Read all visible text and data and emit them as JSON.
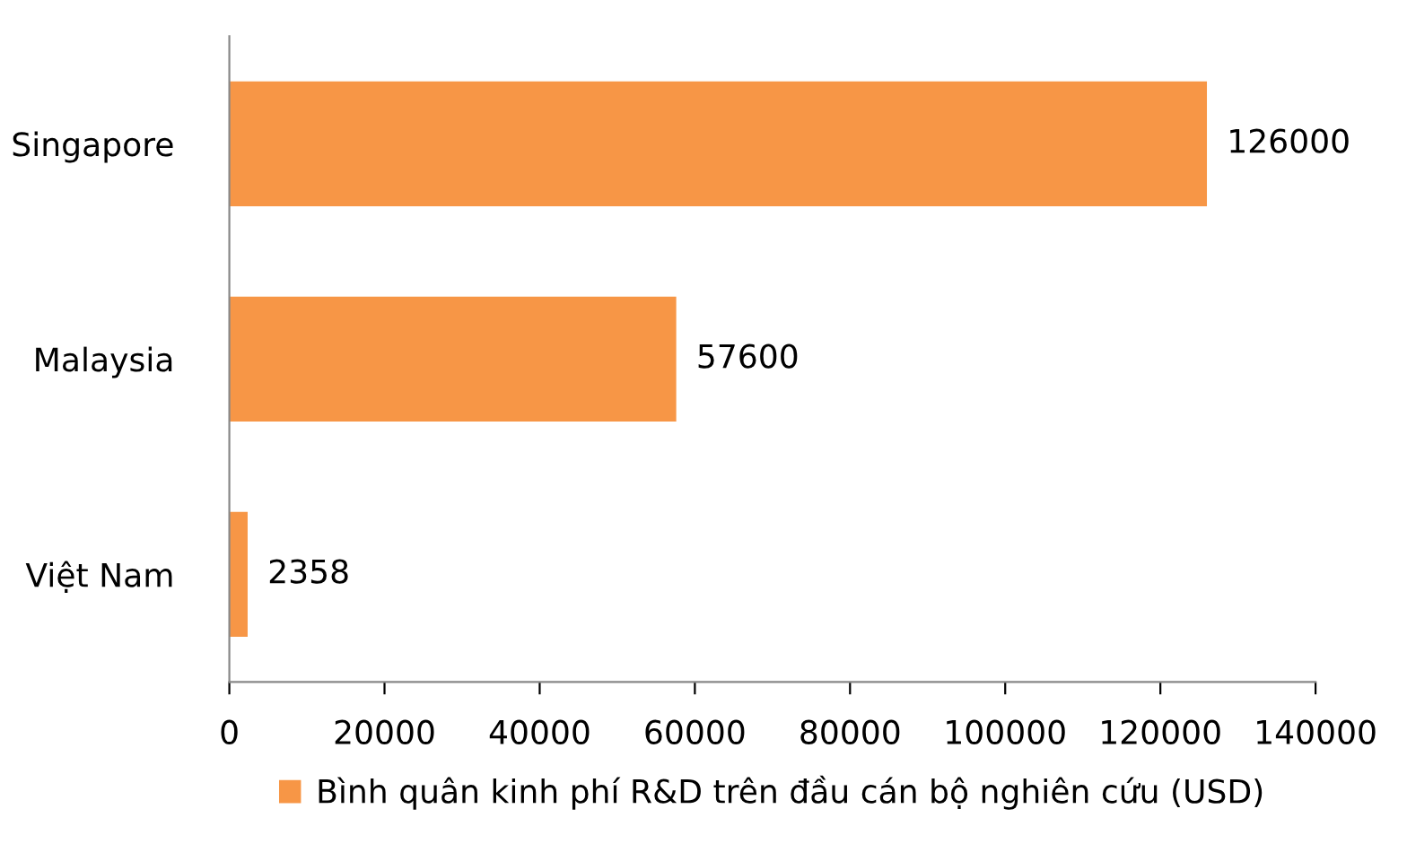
{
  "chart_data": {
    "type": "bar",
    "orientation": "horizontal",
    "categories": [
      "Singapore",
      "Malaysia",
      "Việt Nam"
    ],
    "series": [
      {
        "name": "Bình quân kinh phí R&D trên đầu cán bộ nghiên cứu (USD)",
        "color": "#f79646",
        "values": [
          126000,
          57600,
          2358
        ]
      }
    ],
    "xlim": [
      0,
      140000
    ],
    "xticks": [
      0,
      20000,
      40000,
      60000,
      80000,
      100000,
      120000,
      140000
    ],
    "data_labels": true,
    "grid": false,
    "legend": "bottom"
  }
}
